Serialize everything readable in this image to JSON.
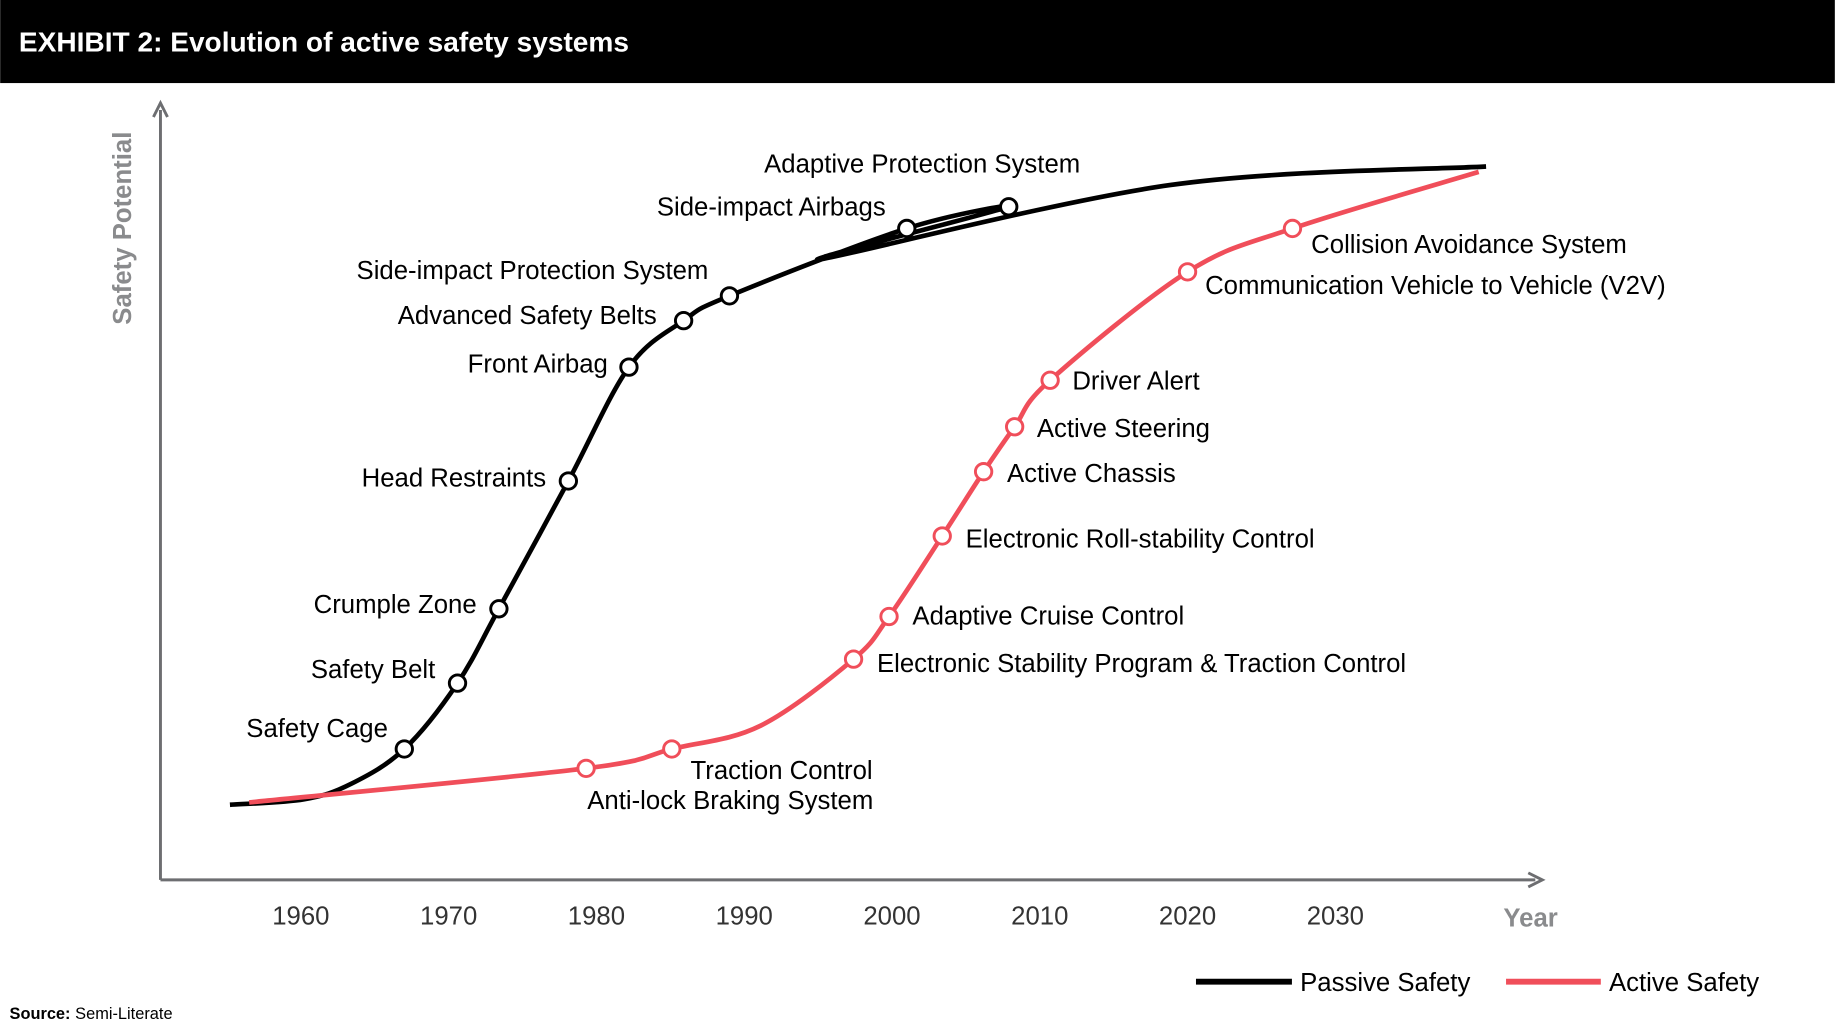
{
  "header": {
    "title": "EXHIBIT 2: Evolution of active safety systems"
  },
  "source": {
    "label": "Source:",
    "text": "Semi-Literate"
  },
  "colors": {
    "passive": "#000000",
    "active": "#f04e5a",
    "axis": "#6d6e71",
    "header_bg": "#000000"
  },
  "chart_data": {
    "type": "line",
    "title": "",
    "xlabel": "Year",
    "ylabel": "Safety Potential",
    "x_ticks": [
      1960,
      1970,
      1980,
      1990,
      2000,
      2010,
      2020,
      2030
    ],
    "xlim": [
      1950.5,
      2043.5
    ],
    "ylim": [
      0,
      100
    ],
    "y_ticks_shown": false,
    "grid": false,
    "legend": "bottom-right",
    "series": [
      {
        "name": "Passive Safety",
        "curve": [
          [
            1955.2,
            9.7
          ],
          [
            1960.2,
            10.4
          ],
          [
            1963.4,
            12.4
          ]
        ],
        "curve_tail": [
          [
            1995.1,
            80.1
          ],
          [
            2018.8,
            89.7
          ],
          [
            2040.2,
            92.1
          ]
        ],
        "milestones": [
          {
            "label": "Safety Cage",
            "year": 1967.0,
            "value": 16.9
          },
          {
            "label": "Safety Belt",
            "year": 1970.6,
            "value": 25.4
          },
          {
            "label": "Crumple Zone",
            "year": 1973.4,
            "value": 35.0
          },
          {
            "label": "Head Restraints",
            "year": 1978.1,
            "value": 51.5
          },
          {
            "label": "Front Airbag",
            "year": 1982.2,
            "value": 66.2
          },
          {
            "label": "Advanced Safety Belts",
            "year": 1985.9,
            "value": 72.2
          },
          {
            "label": "Side-impact Protection System",
            "year": 1989.0,
            "value": 75.4
          },
          {
            "label": "Side-impact Airbags",
            "year": 2001.0,
            "value": 84.1
          },
          {
            "label": "Adaptive Protection System",
            "year": 2007.9,
            "value": 86.9
          }
        ]
      },
      {
        "name": "Active Safety",
        "curve": [
          [
            1956.5,
            10.0
          ]
        ],
        "curve_tail": [
          [
            2039.7,
            91.4
          ]
        ],
        "milestones": [
          {
            "label": "Anti-lock Braking System",
            "year": 1979.3,
            "value": 14.4
          },
          {
            "label": "Traction Control",
            "year": 1985.1,
            "value": 16.9
          },
          {
            "label": "Electronic Stability Program & Traction Control",
            "year": 1997.4,
            "value": 28.5
          },
          {
            "label": "Adaptive Cruise Control",
            "year": 1999.8,
            "value": 34.0
          },
          {
            "label": "Electronic Roll-stability Control",
            "year": 2003.4,
            "value": 44.4
          },
          {
            "label": "Active Chassis",
            "year": 2006.2,
            "value": 52.7
          },
          {
            "label": "Active Steering",
            "year": 2008.3,
            "value": 58.5
          },
          {
            "label": "Driver Alert",
            "year": 2010.7,
            "value": 64.5
          },
          {
            "label": "Communication Vehicle to Vehicle (V2V)",
            "year": 2020.0,
            "value": 78.5
          },
          {
            "label": "Collision Avoidance System",
            "year": 2027.1,
            "value": 84.1
          }
        ]
      }
    ]
  }
}
